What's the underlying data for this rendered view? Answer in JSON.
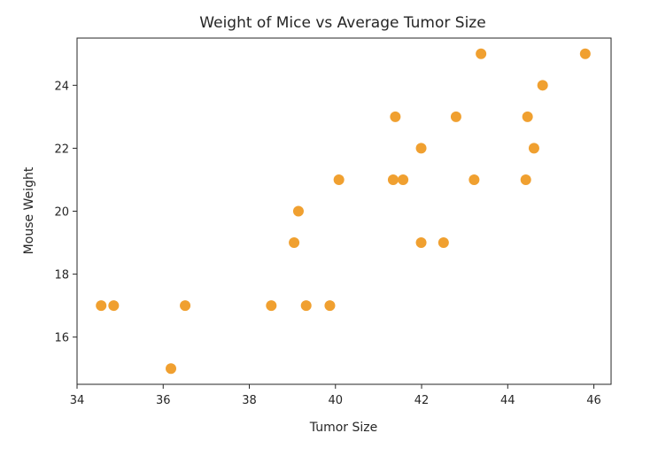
{
  "chart_data": {
    "type": "scatter",
    "title": "Weight of Mice vs Average Tumor Size",
    "xlabel": "Tumor Size",
    "ylabel": "Mouse Weight",
    "xlim": [
      34,
      46.4
    ],
    "ylim": [
      14.5,
      25.5
    ],
    "xticks": [
      34,
      36,
      38,
      40,
      42,
      44,
      46
    ],
    "yticks": [
      16,
      18,
      20,
      22,
      24
    ],
    "grid": false,
    "marker_color": "#f0a030",
    "points": [
      {
        "x": 34.56,
        "y": 17
      },
      {
        "x": 34.85,
        "y": 17
      },
      {
        "x": 36.18,
        "y": 15
      },
      {
        "x": 36.51,
        "y": 17
      },
      {
        "x": 38.51,
        "y": 17
      },
      {
        "x": 39.04,
        "y": 19
      },
      {
        "x": 39.14,
        "y": 20
      },
      {
        "x": 39.32,
        "y": 17
      },
      {
        "x": 39.87,
        "y": 17
      },
      {
        "x": 40.08,
        "y": 21
      },
      {
        "x": 41.34,
        "y": 21
      },
      {
        "x": 41.39,
        "y": 23
      },
      {
        "x": 41.57,
        "y": 21
      },
      {
        "x": 41.99,
        "y": 22
      },
      {
        "x": 41.99,
        "y": 19
      },
      {
        "x": 42.51,
        "y": 19
      },
      {
        "x": 42.8,
        "y": 23
      },
      {
        "x": 43.22,
        "y": 21
      },
      {
        "x": 43.38,
        "y": 25
      },
      {
        "x": 44.42,
        "y": 21
      },
      {
        "x": 44.46,
        "y": 23
      },
      {
        "x": 44.61,
        "y": 22
      },
      {
        "x": 44.81,
        "y": 24
      },
      {
        "x": 45.8,
        "y": 25
      }
    ]
  }
}
